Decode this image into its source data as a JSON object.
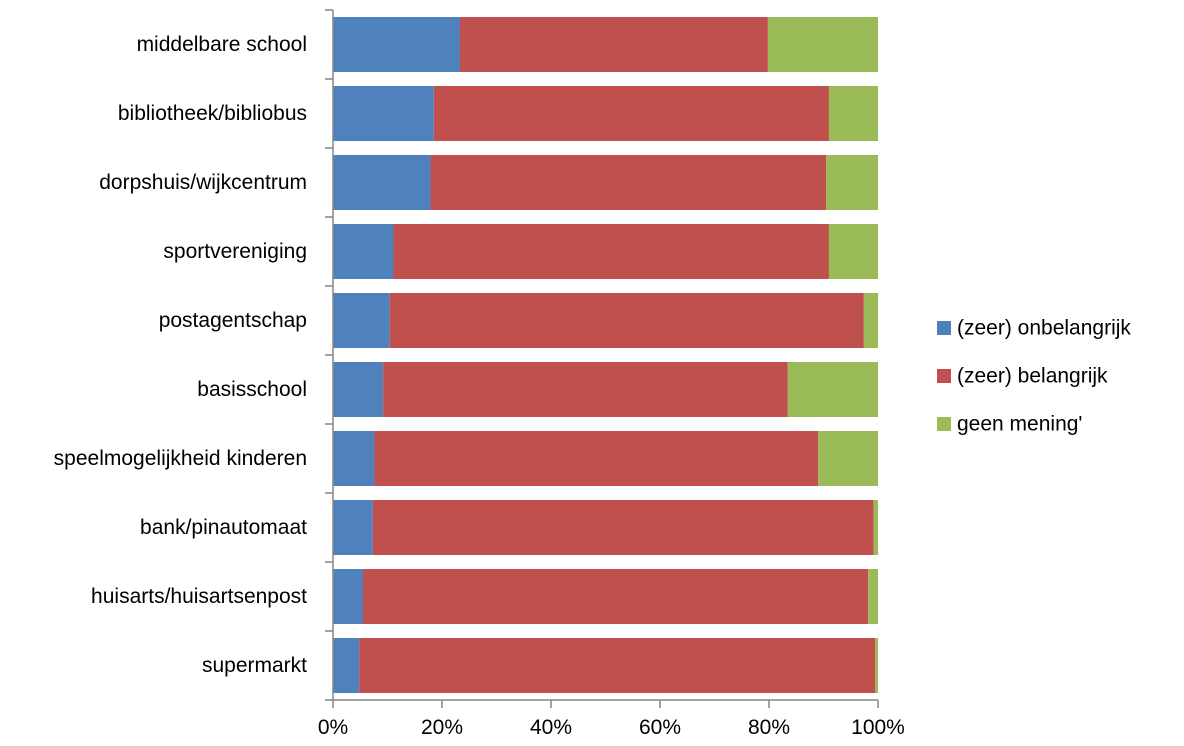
{
  "chart_data": {
    "type": "bar",
    "orientation": "horizontal",
    "stacked": "percent",
    "categories": [
      "middelbare school",
      "bibliotheek/bibliobus",
      "dorpshuis/wijkcentrum",
      "sportvereniging",
      "postagentschap",
      "basisschool",
      "speelmogelijkheid kinderen",
      "bank/pinautomaat",
      "huisarts/huisartsenpost",
      "supermarkt"
    ],
    "series": [
      {
        "name": "(zeer) onbelangrijk",
        "color": "#4f81bd",
        "values": [
          23.3,
          18.5,
          17.9,
          11.1,
          10.4,
          9.2,
          7.6,
          7.3,
          5.5,
          4.8
        ]
      },
      {
        "name": "(zeer) belangrijk",
        "color": "#c0504d",
        "values": [
          56.5,
          72.5,
          72.6,
          79.9,
          87.0,
          74.2,
          81.4,
          91.9,
          92.7,
          94.7
        ]
      },
      {
        "name": "geen mening'",
        "color": "#9bbb59",
        "values": [
          20.2,
          9.0,
          9.5,
          9.0,
          2.6,
          16.6,
          11.0,
          0.8,
          1.8,
          0.5
        ]
      }
    ],
    "xlim": [
      0,
      100
    ],
    "x_ticks": [
      "0%",
      "20%",
      "40%",
      "60%",
      "80%",
      "100%"
    ],
    "title": "",
    "xlabel": "",
    "ylabel": "",
    "grid": false,
    "legend": {
      "position": "right"
    }
  }
}
